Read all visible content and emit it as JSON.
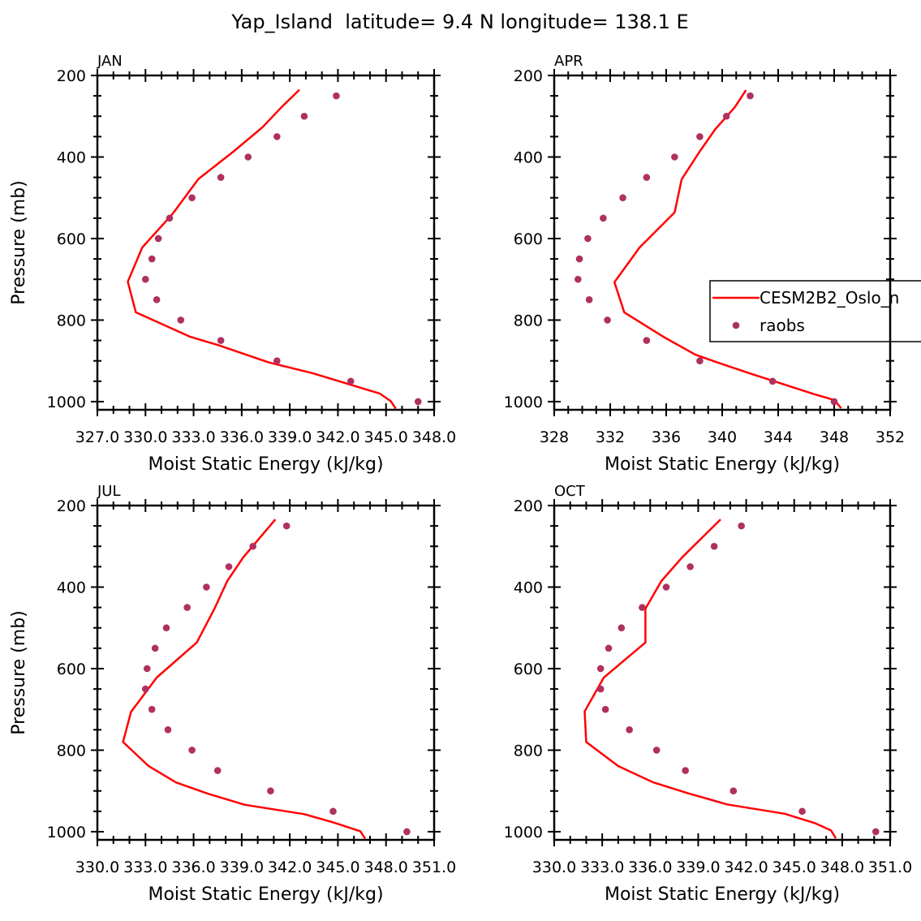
{
  "title": "Yap_Island  latitude= 9.4 N longitude= 138.1 E",
  "colors": {
    "model": "#ff0000",
    "obs": "#b03060"
  },
  "legend": {
    "model_label": "CESM2B2_Oslo_n",
    "obs_label": "raobs",
    "placement": "inside APR panel, right"
  },
  "chart_data": [
    {
      "type": "line",
      "panel": "JAN",
      "title": "JAN",
      "xlabel": "Moist Static Energy (kJ/kg)",
      "ylabel": "Pressure (mb)",
      "xlim": [
        327,
        348
      ],
      "ylim": [
        1020,
        200
      ],
      "xticks": [
        327,
        330,
        333,
        336,
        339,
        342,
        345,
        348
      ],
      "xtick_labels": [
        "327.0",
        "330.0",
        "333.0",
        "336.0",
        "339.0",
        "342.0",
        "345.0",
        "348.0"
      ],
      "yticks": [
        200,
        400,
        600,
        800,
        1000
      ],
      "ytick_labels": [
        "200",
        "400",
        "600",
        "800",
        "1000"
      ],
      "series": [
        {
          "name": "CESM2B2_Oslo_n",
          "kind": "line",
          "mse": [
            339.6,
            338.5,
            337.3,
            335.5,
            333.3,
            331.7,
            329.8,
            328.9,
            329.4,
            332.8,
            334.5,
            337.7,
            340.4,
            344.6,
            345.3,
            345.6
          ],
          "p": [
            235,
            277,
            327,
            386,
            454,
            539,
            622,
            706,
            781,
            841,
            861,
            904,
            930,
            980,
            999,
            1017
          ]
        },
        {
          "name": "raobs",
          "kind": "points",
          "mse": [
            341.9,
            339.9,
            338.2,
            336.4,
            334.7,
            332.9,
            331.5,
            330.8,
            330.4,
            330.0,
            330.7,
            332.2,
            334.7,
            338.2,
            342.8,
            347.0
          ],
          "p": [
            250,
            300,
            350,
            400,
            450,
            500,
            550,
            600,
            650,
            700,
            750,
            800,
            850,
            900,
            950,
            1000
          ]
        }
      ]
    },
    {
      "type": "line",
      "panel": "APR",
      "title": "APR",
      "xlabel": "Moist Static Energy (kJ/kg)",
      "ylabel": "",
      "xlim": [
        328,
        352
      ],
      "ylim": [
        1020,
        200
      ],
      "xticks": [
        328,
        332,
        336,
        340,
        344,
        348,
        352
      ],
      "xtick_labels": [
        "328",
        "332",
        "336",
        "340",
        "344",
        "348",
        "352"
      ],
      "yticks": [
        200,
        400,
        600,
        800,
        1000
      ],
      "ytick_labels": [
        "200",
        "400",
        "600",
        "800",
        "1000"
      ],
      "series": [
        {
          "name": "CESM2B2_Oslo_n",
          "kind": "line",
          "mse": [
            341.7,
            340.9,
            339.5,
            338.4,
            337.1,
            336.6,
            334.1,
            332.3,
            333.0,
            335.8,
            338.1,
            340.0,
            342.1,
            346.6,
            348.0,
            348.5
          ],
          "p": [
            236,
            278,
            332,
            386,
            455,
            536,
            622,
            707,
            781,
            841,
            885,
            908,
            932,
            982,
            996,
            1016
          ]
        },
        {
          "name": "raobs",
          "kind": "points",
          "mse": [
            342.0,
            340.3,
            338.4,
            336.6,
            334.6,
            332.9,
            331.5,
            330.4,
            329.8,
            329.7,
            330.5,
            331.8,
            334.6,
            338.4,
            343.6,
            348.0
          ],
          "p": [
            250,
            300,
            350,
            400,
            450,
            500,
            550,
            600,
            650,
            700,
            750,
            800,
            850,
            900,
            950,
            1000
          ]
        }
      ]
    },
    {
      "type": "line",
      "panel": "JUL",
      "title": "JUL",
      "xlabel": "Moist Static Energy (kJ/kg)",
      "ylabel": "Pressure (mb)",
      "xlim": [
        330,
        351
      ],
      "ylim": [
        1020,
        200
      ],
      "xticks": [
        330,
        333,
        336,
        339,
        342,
        345,
        348,
        351
      ],
      "xtick_labels": [
        "330.0",
        "333.0",
        "336.0",
        "339.0",
        "342.0",
        "345.0",
        "348.0",
        "351.0"
      ],
      "yticks": [
        200,
        400,
        600,
        800,
        1000
      ],
      "ytick_labels": [
        "200",
        "400",
        "600",
        "800",
        "1000"
      ],
      "series": [
        {
          "name": "CESM2B2_Oslo_n",
          "kind": "line",
          "mse": [
            341.1,
            339.1,
            338.1,
            337.3,
            336.2,
            333.7,
            332.1,
            331.6,
            333.2,
            334.9,
            336.9,
            339.2,
            342.9,
            344.7,
            346.4,
            346.7
          ],
          "p": [
            234,
            327,
            385,
            453,
            536,
            622,
            706,
            780,
            839,
            879,
            907,
            934,
            957,
            977,
            999,
            1017
          ]
        },
        {
          "name": "raobs",
          "kind": "points",
          "mse": [
            341.8,
            339.7,
            338.2,
            336.8,
            335.6,
            334.3,
            333.6,
            333.1,
            333.0,
            333.4,
            334.4,
            335.9,
            337.5,
            340.8,
            344.7,
            349.3
          ],
          "p": [
            250,
            300,
            350,
            400,
            450,
            500,
            550,
            600,
            650,
            700,
            750,
            800,
            850,
            900,
            950,
            1000
          ]
        }
      ]
    },
    {
      "type": "line",
      "panel": "OCT",
      "title": "OCT",
      "xlabel": "Moist Static Energy (kJ/kg)",
      "ylabel": "",
      "xlim": [
        330,
        351
      ],
      "ylim": [
        1020,
        200
      ],
      "xticks": [
        330,
        333,
        336,
        339,
        342,
        345,
        348,
        351
      ],
      "xtick_labels": [
        "330.0",
        "333.0",
        "336.0",
        "339.0",
        "342.0",
        "345.0",
        "348.0",
        "351.0"
      ],
      "yticks": [
        200,
        400,
        600,
        800,
        1000
      ],
      "ytick_labels": [
        "200",
        "400",
        "600",
        "800",
        "1000"
      ],
      "series": [
        {
          "name": "CESM2B2_Oslo_n",
          "kind": "line",
          "mse": [
            340.4,
            338.0,
            336.7,
            335.7,
            335.7,
            333.1,
            331.9,
            332.0,
            334.0,
            336.2,
            338.3,
            340.8,
            344.4,
            346.3,
            347.3,
            347.6
          ],
          "p": [
            234,
            327,
            385,
            453,
            536,
            622,
            705,
            780,
            839,
            879,
            905,
            933,
            956,
            979,
            997,
            1016
          ]
        },
        {
          "name": "raobs",
          "kind": "points",
          "mse": [
            341.7,
            340.0,
            338.5,
            337.0,
            335.5,
            334.2,
            333.4,
            332.9,
            332.9,
            333.2,
            334.7,
            336.4,
            338.2,
            341.2,
            345.5,
            350.1
          ],
          "p": [
            250,
            300,
            350,
            400,
            450,
            500,
            550,
            600,
            650,
            700,
            750,
            800,
            850,
            900,
            950,
            1000
          ]
        }
      ]
    }
  ]
}
